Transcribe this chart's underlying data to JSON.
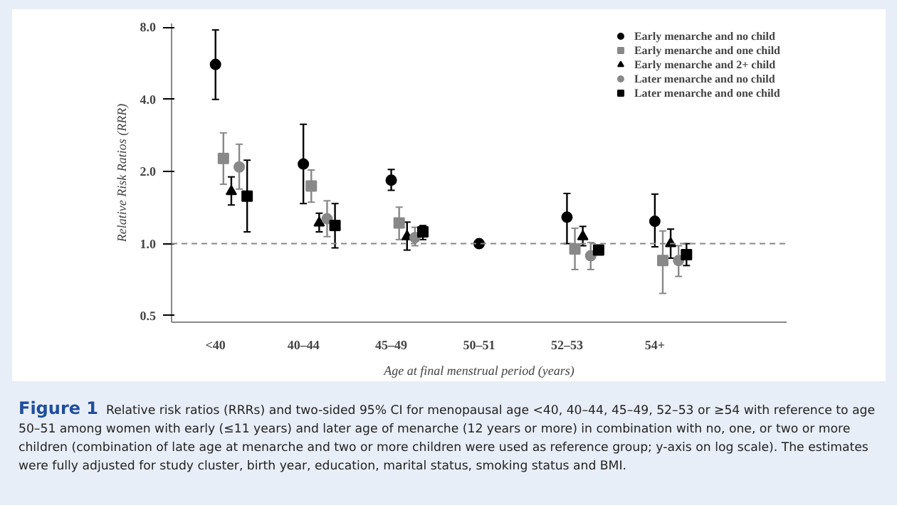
{
  "chart_data": {
    "type": "scatter",
    "ylabel": "Relative Risk Ratios (RRR)",
    "xlabel": "Age at final menstrual period (years)",
    "categories": [
      "<40",
      "40–44",
      "45–49",
      "50–51",
      "52–53",
      "54+"
    ],
    "log": true,
    "ylim": [
      0.47,
      8.3
    ],
    "yticks": [
      {
        "value": 0.5,
        "label": "0.5"
      },
      {
        "value": 1,
        "label": "1.0"
      },
      {
        "value": 2,
        "label": "2.0"
      },
      {
        "value": 4,
        "label": "4.0"
      },
      {
        "value": 8,
        "label": "8.0"
      }
    ],
    "ref_lines": [
      {
        "axis": "y",
        "value": 1,
        "line_style": "dashed",
        "color": "#888888"
      }
    ],
    "legend": "top right",
    "grid": false,
    "series": [
      {
        "name": "Early menarche and no child",
        "color": "#000000",
        "marker": "circle",
        "values": [
          5.6,
          2.15,
          1.84,
          1.0,
          1.29,
          1.24
        ],
        "errors": [
          [
            4.0,
            7.8
          ],
          [
            1.47,
            3.15
          ],
          [
            1.67,
            2.04
          ],
          null,
          [
            1.0,
            1.62
          ],
          [
            0.97,
            1.61
          ]
        ]
      },
      {
        "name": "Early menarche and one child",
        "color": "#888888",
        "marker": "square",
        "values": [
          2.27,
          1.74,
          1.22,
          null,
          0.95,
          0.85
        ],
        "errors": [
          [
            1.77,
            2.9
          ],
          [
            1.49,
            2.03
          ],
          [
            1.04,
            1.42
          ],
          null,
          [
            0.78,
            1.16
          ],
          [
            0.62,
            1.13
          ]
        ]
      },
      {
        "name": "Early menarche and 2+ child",
        "color": "#000000",
        "marker": "triangle",
        "values": [
          1.65,
          1.22,
          1.07,
          null,
          1.07,
          1.0
        ],
        "errors": [
          [
            1.45,
            1.9
          ],
          [
            1.12,
            1.34
          ],
          [
            0.94,
            1.23
          ],
          null,
          [
            0.98,
            1.18
          ],
          [
            0.87,
            1.15
          ]
        ]
      },
      {
        "name": "Later menarche and no child",
        "color": "#888888",
        "marker": "circle",
        "values": [
          2.09,
          1.27,
          1.06,
          null,
          0.89,
          0.85
        ],
        "errors": [
          [
            1.69,
            2.6
          ],
          [
            1.07,
            1.51
          ],
          [
            0.98,
            1.17
          ],
          null,
          [
            0.78,
            1.01
          ],
          [
            0.73,
            0.98
          ]
        ]
      },
      {
        "name": "Later menarche and one child",
        "color": "#000000",
        "marker": "square",
        "values": [
          1.58,
          1.19,
          1.12,
          null,
          0.94,
          0.9
        ],
        "errors": [
          [
            1.12,
            2.23
          ],
          [
            0.96,
            1.47
          ],
          [
            1.04,
            1.19
          ],
          null,
          [
            0.91,
            0.98
          ],
          [
            0.81,
            1.0
          ]
        ]
      }
    ],
    "annotations": [
      "Figure 1",
      "Relative risk ratios (RRRs) and two-sided 95% CI for menopausal age <40, 40–44, 45–49, 52–53 or ≥54 with reference to age 50–51 among women with early (≤11 years) and later age of menarche (12 years or more) in combination with no, one, or two or more children (combination of late age at menarche and two or more children were used as reference group; y-axis on log scale). The estimates were fully adjusted for study cluster, birth year, education, marital status, smoking status and BMI."
    ]
  }
}
